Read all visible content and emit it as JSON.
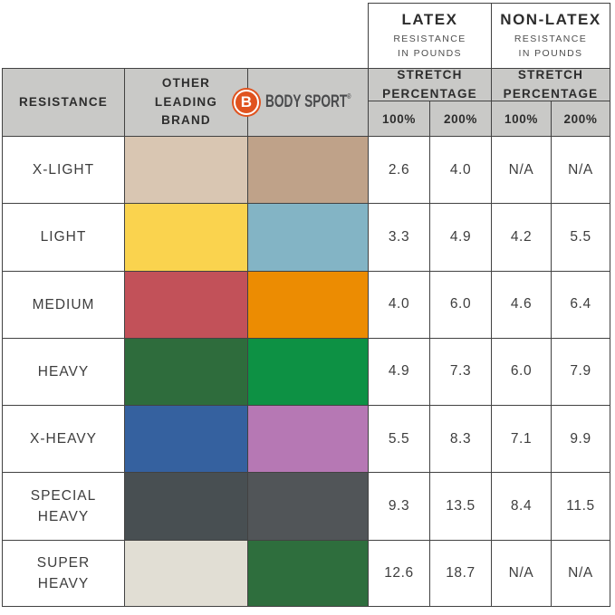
{
  "table": {
    "latex_header": {
      "title": "LATEX",
      "subtitle": "RESISTANCE\nIN POUNDS"
    },
    "nonlatex_header": {
      "title": "NON-LATEX",
      "subtitle": "RESISTANCE\nIN POUNDS"
    },
    "columns": {
      "resistance": "RESISTANCE",
      "other_brand": "OTHER\nLEADING\nBRAND",
      "stretch": "STRETCH\nPERCENTAGE",
      "pct100": "100%",
      "pct200": "200%"
    },
    "brand": {
      "name": "BODY SPORT",
      "registered": "®",
      "logo_letter": "B",
      "logo_color": "#e0531f",
      "text_color": "#4a4b4d"
    },
    "rows": [
      {
        "label": "X-LIGHT",
        "other_color": "#d9c6b2",
        "bodysport_color": "#bfa289",
        "latex_100": "2.6",
        "latex_200": "4.0",
        "nonlatex_100": "N/A",
        "nonlatex_200": "N/A"
      },
      {
        "label": "LIGHT",
        "other_color": "#fad34e",
        "bodysport_color": "#83b4c5",
        "latex_100": "3.3",
        "latex_200": "4.9",
        "nonlatex_100": "4.2",
        "nonlatex_200": "5.5"
      },
      {
        "label": "MEDIUM",
        "other_color": "#c25159",
        "bodysport_color": "#ec8c02",
        "latex_100": "4.0",
        "latex_200": "6.0",
        "nonlatex_100": "4.6",
        "nonlatex_200": "6.4"
      },
      {
        "label": "HEAVY",
        "other_color": "#2e6c3c",
        "bodysport_color": "#0d9144",
        "latex_100": "4.9",
        "latex_200": "7.3",
        "nonlatex_100": "6.0",
        "nonlatex_200": "7.9"
      },
      {
        "label": "X-HEAVY",
        "other_color": "#35619f",
        "bodysport_color": "#b678b4",
        "latex_100": "5.5",
        "latex_200": "8.3",
        "nonlatex_100": "7.1",
        "nonlatex_200": "9.9"
      },
      {
        "label": "SPECIAL\nHEAVY",
        "other_color": "#484f52",
        "bodysport_color": "#515558",
        "latex_100": "9.3",
        "latex_200": "13.5",
        "nonlatex_100": "8.4",
        "nonlatex_200": "11.5"
      },
      {
        "label": "SUPER\nHEAVY",
        "other_color": "#e1ded4",
        "bodysport_color": "#2e6e3d",
        "latex_100": "12.6",
        "latex_200": "18.7",
        "nonlatex_100": "N/A",
        "nonlatex_200": "N/A"
      }
    ]
  },
  "chart_data": {
    "type": "table",
    "title": "Resistance band comparison: Body Sport vs Other Leading Brand",
    "column_groups": [
      "LATEX RESISTANCE IN POUNDS",
      "NON-LATEX RESISTANCE IN POUNDS"
    ],
    "columns": [
      "RESISTANCE",
      "OTHER LEADING BRAND (band color)",
      "BODY SPORT (band color)",
      "LATEX 100% stretch",
      "LATEX 200% stretch",
      "NON-LATEX 100% stretch",
      "NON-LATEX 200% stretch"
    ],
    "rows": [
      [
        "X-LIGHT",
        "tan",
        "dark tan",
        2.6,
        4.0,
        "N/A",
        "N/A"
      ],
      [
        "LIGHT",
        "yellow",
        "light blue",
        3.3,
        4.9,
        4.2,
        5.5
      ],
      [
        "MEDIUM",
        "red",
        "orange",
        4.0,
        6.0,
        4.6,
        6.4
      ],
      [
        "HEAVY",
        "dark green",
        "green",
        4.9,
        7.3,
        6.0,
        7.9
      ],
      [
        "X-HEAVY",
        "blue",
        "orchid",
        5.5,
        8.3,
        7.1,
        9.9
      ],
      [
        "SPECIAL HEAVY",
        "dark gray",
        "dark gray",
        9.3,
        13.5,
        8.4,
        11.5
      ],
      [
        "SUPER HEAVY",
        "off-white",
        "dark green",
        12.6,
        18.7,
        "N/A",
        "N/A"
      ]
    ]
  }
}
